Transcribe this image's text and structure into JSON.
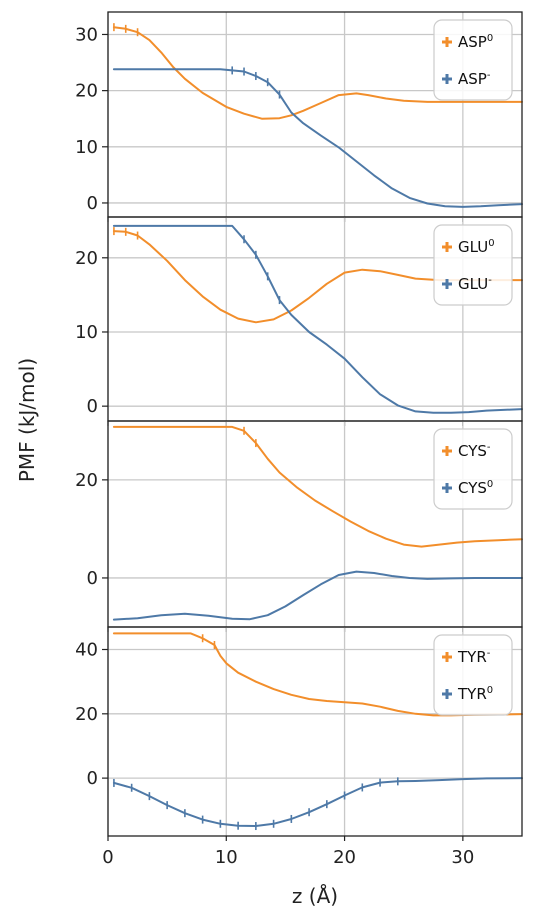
{
  "figure": {
    "xlabel": "z (Å)",
    "ylabel": "PMF (kJ/mol)",
    "colors": {
      "orange": "#f28e2b",
      "blue": "#4e79a7"
    }
  },
  "chart_data": [
    {
      "type": "line",
      "xlim": [
        0,
        35
      ],
      "ylim": [
        -2.5,
        34
      ],
      "x_ticks": [
        0,
        10,
        20,
        30
      ],
      "y_ticks": [
        0,
        10,
        20,
        30
      ],
      "grid": true,
      "legend_placement": "top-right",
      "series": [
        {
          "name": "ASP",
          "sup": "0",
          "color": "#f28e2b",
          "x": [
            0.5,
            1.5,
            2.5,
            3.5,
            4.5,
            5.5,
            6.5,
            8,
            10,
            11.5,
            13,
            14.5,
            15.5,
            16.5,
            18,
            19.5,
            21,
            22,
            23.5,
            25,
            27,
            29,
            31,
            33,
            35
          ],
          "y": [
            31.3,
            31.0,
            30.4,
            29.0,
            26.8,
            24.2,
            22.1,
            19.6,
            17.1,
            15.9,
            15.0,
            15.1,
            15.6,
            16.4,
            17.8,
            19.2,
            19.5,
            19.2,
            18.6,
            18.2,
            18.0,
            18.0,
            18.0,
            18.0,
            18.0
          ],
          "error_x": [
            0.5,
            1.5,
            2.5
          ]
        },
        {
          "name": "ASP",
          "sup": "-",
          "color": "#4e79a7",
          "x": [
            0.5,
            3,
            6,
            9.5,
            10.5,
            11.5,
            12.5,
            13.5,
            14.5,
            15.5,
            16.5,
            18,
            19.5,
            21,
            22.5,
            24,
            25.5,
            27,
            28.5,
            30,
            31.5,
            33,
            35
          ],
          "y": [
            23.8,
            23.8,
            23.8,
            23.8,
            23.6,
            23.4,
            22.6,
            21.5,
            19.3,
            16.1,
            14.2,
            12.0,
            9.9,
            7.4,
            4.9,
            2.6,
            0.9,
            -0.1,
            -0.6,
            -0.7,
            -0.6,
            -0.4,
            -0.2
          ],
          "error_x": [
            10.5,
            11.5,
            12.5,
            13.5,
            14.5
          ]
        }
      ]
    },
    {
      "type": "line",
      "xlim": [
        0,
        35
      ],
      "ylim": [
        -2,
        25.5
      ],
      "x_ticks": [
        0,
        10,
        20,
        30
      ],
      "y_ticks": [
        0,
        10,
        20
      ],
      "grid": true,
      "legend_placement": "top-right",
      "series": [
        {
          "name": "GLU",
          "sup": "0",
          "color": "#f28e2b",
          "x": [
            0.5,
            1.5,
            2.5,
            3.5,
            5,
            6.5,
            8,
            9.5,
            11,
            12.5,
            14,
            15.5,
            17,
            18.5,
            20,
            21.5,
            23,
            24.5,
            26,
            28,
            30,
            32,
            35
          ],
          "y": [
            23.6,
            23.5,
            23.0,
            21.8,
            19.6,
            17.0,
            14.8,
            13.0,
            11.8,
            11.3,
            11.7,
            12.9,
            14.6,
            16.5,
            18.0,
            18.4,
            18.2,
            17.7,
            17.2,
            17.0,
            17.0,
            17.0,
            17.0
          ],
          "error_x": [
            0.5,
            1.5,
            2.5
          ]
        },
        {
          "name": "GLU",
          "sup": "-",
          "color": "#4e79a7",
          "x": [
            0.5,
            4,
            8,
            10.5,
            11.5,
            12.5,
            13.5,
            14.5,
            15.5,
            17,
            18.5,
            20,
            21.5,
            23,
            24.5,
            26,
            27.5,
            29,
            30.5,
            32,
            35
          ],
          "y": [
            24.3,
            24.3,
            24.3,
            24.3,
            22.5,
            20.4,
            17.5,
            14.3,
            12.3,
            10.0,
            8.3,
            6.4,
            3.9,
            1.6,
            0.1,
            -0.7,
            -0.9,
            -0.9,
            -0.8,
            -0.6,
            -0.4
          ],
          "error_x": [
            11.5,
            12.5,
            13.5,
            14.5
          ]
        }
      ]
    },
    {
      "type": "line",
      "xlim": [
        0,
        35
      ],
      "ylim": [
        -10,
        32
      ],
      "x_ticks": [
        0,
        10,
        20,
        30
      ],
      "y_ticks": [
        0,
        20
      ],
      "grid": true,
      "legend_placement": "top-right",
      "series": [
        {
          "name": "CYS",
          "sup": "-",
          "color": "#f28e2b",
          "x": [
            0.5,
            4,
            8,
            10.5,
            11.5,
            12.5,
            13.5,
            14.5,
            16,
            17.5,
            19,
            20.5,
            22,
            23.5,
            25,
            26.5,
            28,
            29.5,
            31,
            33,
            35
          ],
          "y": [
            30.8,
            30.8,
            30.8,
            30.8,
            30.0,
            27.5,
            24.3,
            21.5,
            18.4,
            15.8,
            13.6,
            11.5,
            9.6,
            8.0,
            6.8,
            6.4,
            6.8,
            7.2,
            7.5,
            7.7,
            7.9
          ],
          "error_x": [
            11.5,
            12.5
          ]
        },
        {
          "name": "CYS",
          "sup": "0",
          "color": "#4e79a7",
          "x": [
            0.5,
            2.5,
            4.5,
            6.5,
            8.5,
            10.5,
            12,
            13.5,
            15,
            16.5,
            18,
            19.5,
            21,
            22.5,
            24,
            25.5,
            27,
            29,
            31,
            33,
            35
          ],
          "y": [
            -8.5,
            -8.2,
            -7.6,
            -7.3,
            -7.7,
            -8.3,
            -8.4,
            -7.6,
            -5.8,
            -3.5,
            -1.3,
            0.6,
            1.3,
            1.0,
            0.4,
            0.0,
            -0.2,
            -0.1,
            0.0,
            0.0,
            0.0
          ],
          "error_x": []
        }
      ]
    },
    {
      "type": "line",
      "xlim": [
        0,
        35
      ],
      "ylim": [
        -18,
        47
      ],
      "x_ticks": [
        0,
        10,
        20,
        30
      ],
      "y_ticks": [
        0,
        20,
        40
      ],
      "grid": true,
      "legend_placement": "top-right",
      "series": [
        {
          "name": "TYR",
          "sup": "-",
          "color": "#f28e2b",
          "x": [
            0.5,
            4,
            7,
            8,
            9,
            9.5,
            10,
            11,
            12.5,
            14,
            15.5,
            17,
            18.5,
            20,
            21.5,
            23,
            24.5,
            26,
            27.5,
            29,
            31,
            33,
            35
          ],
          "y": [
            45.0,
            45.0,
            45.0,
            43.5,
            41.4,
            38.0,
            35.7,
            32.8,
            30.0,
            27.7,
            25.9,
            24.6,
            24.0,
            23.6,
            23.2,
            22.2,
            20.9,
            20.0,
            19.5,
            19.5,
            19.7,
            19.8,
            19.9
          ],
          "error_x": [
            8,
            9
          ]
        },
        {
          "name": "TYR",
          "sup": "0",
          "color": "#4e79a7",
          "x": [
            0.5,
            2,
            3.5,
            5,
            6.5,
            8,
            9.5,
            11,
            12.5,
            14,
            15.5,
            17,
            18.5,
            20,
            21.5,
            23,
            24.5,
            26,
            28,
            30,
            32,
            35
          ],
          "y": [
            -1.5,
            -3.0,
            -5.6,
            -8.4,
            -10.9,
            -12.9,
            -14.2,
            -14.8,
            -14.9,
            -14.2,
            -12.7,
            -10.6,
            -8.1,
            -5.4,
            -2.9,
            -1.4,
            -1.0,
            -0.9,
            -0.6,
            -0.3,
            -0.1,
            0.0
          ],
          "error_x": [
            0.5,
            2,
            3.5,
            5,
            6.5,
            8,
            9.5,
            11,
            12.5,
            14,
            15.5,
            17,
            18.5,
            20,
            21.5,
            23,
            24.5
          ]
        }
      ]
    }
  ]
}
